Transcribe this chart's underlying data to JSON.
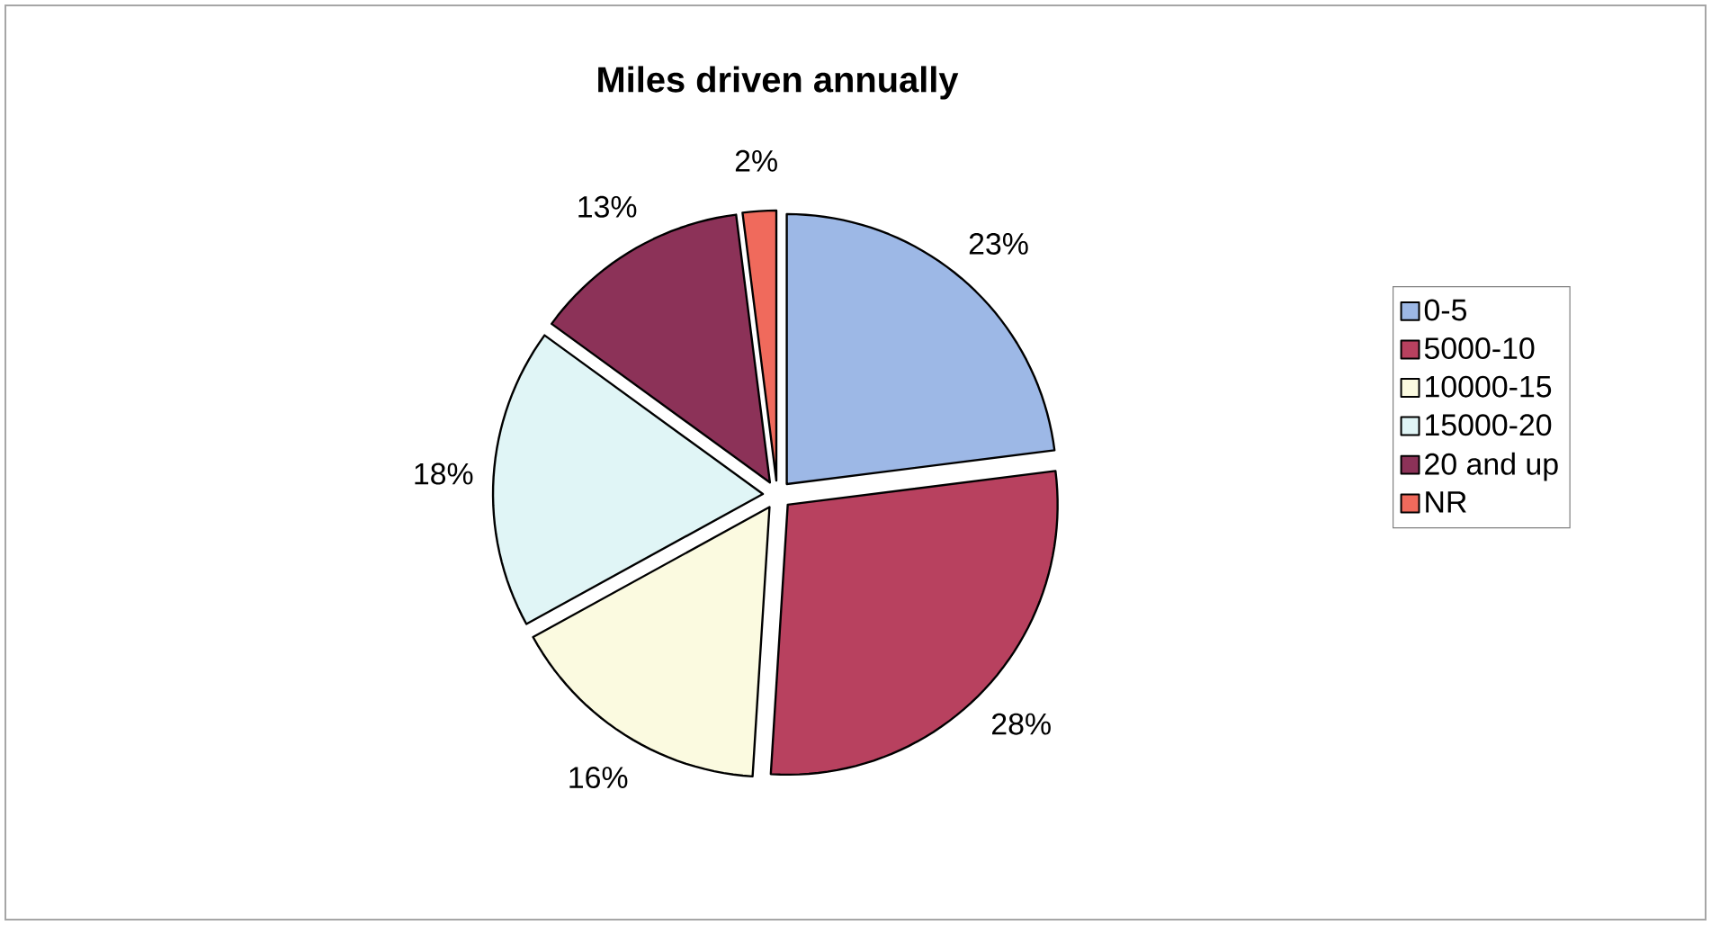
{
  "chart_data": {
    "type": "pie",
    "title": "Miles driven annually",
    "categories": [
      "0-5",
      "5000-10",
      "10000-15",
      "15000-20",
      "20 and up",
      "NR"
    ],
    "values": [
      23,
      28,
      16,
      18,
      13,
      2
    ],
    "colors": [
      "#9db8e6",
      "#b8415f",
      "#fbfae0",
      "#e0f5f6",
      "#8c3258",
      "#f06a5c"
    ],
    "value_labels": [
      "23%",
      "28%",
      "16%",
      "18%",
      "13%",
      "2%"
    ],
    "legend": "right"
  }
}
